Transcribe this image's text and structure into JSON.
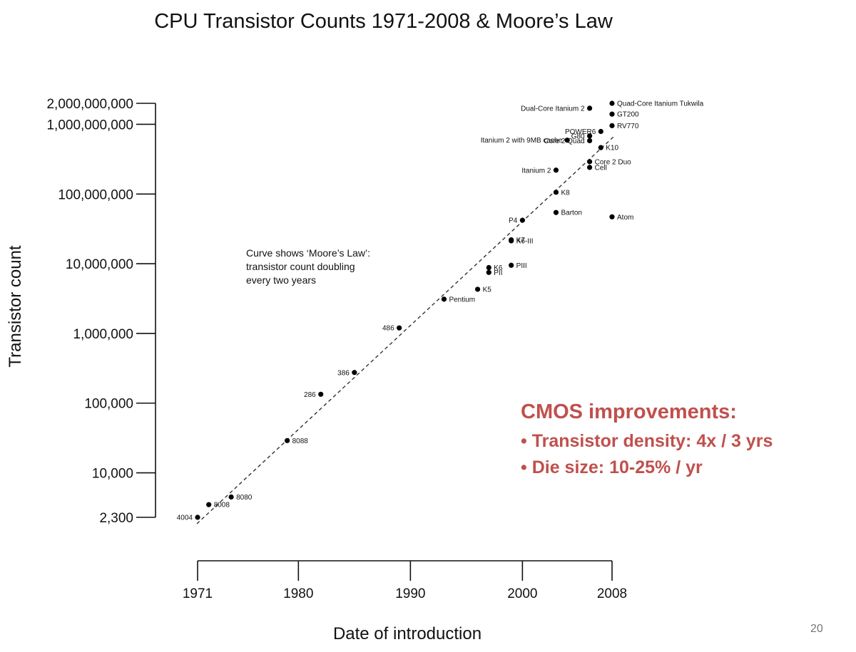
{
  "title": "CPU Transistor Counts 1971-2008 & Moore’s Law",
  "page_number": "20",
  "callout": {
    "heading": "CMOS improvements:",
    "items": [
      "• Transistor density: 4x / 3 yrs",
      "• Die size: 10-25% / yr"
    ]
  },
  "accent_color": "#c0504d",
  "chart_data": {
    "type": "scatter",
    "title": "CPU Transistor Counts 1971-2008 & Moore’s Law",
    "xlabel": "Date of introduction",
    "ylabel": "Transistor count",
    "yscale": "log",
    "xlim": [
      1971,
      2008
    ],
    "ylim": [
      2300,
      2000000000
    ],
    "x_ticks": [
      1971,
      1980,
      1990,
      2000,
      2008
    ],
    "y_ticks": [
      {
        "value": 2000000000,
        "label": "2,000,000,000"
      },
      {
        "value": 1000000000,
        "label": "1,000,000,000"
      },
      {
        "value": 100000000,
        "label": "100,000,000"
      },
      {
        "value": 10000000,
        "label": "10,000,000"
      },
      {
        "value": 1000000,
        "label": "1,000,000"
      },
      {
        "value": 100000,
        "label": "100,000"
      },
      {
        "value": 10000,
        "label": "10,000"
      },
      {
        "value": 2300,
        "label": "2,300"
      }
    ],
    "annotation": [
      "Curve shows ‘Moore’s Law’:",
      "transistor count doubling",
      "every two years"
    ],
    "trend": {
      "type": "dashed",
      "label": "Moore’s Law",
      "doubling_years": 2,
      "from": [
        1971,
        2300
      ],
      "to": [
        2008,
        600000000
      ]
    },
    "points": [
      {
        "name": "4004",
        "x": 1971,
        "y": 2300,
        "label_side": "left"
      },
      {
        "name": "8008",
        "x": 1972,
        "y": 3500,
        "label_side": "right"
      },
      {
        "name": "8080",
        "x": 1974,
        "y": 4500,
        "label_side": "right"
      },
      {
        "name": "8088",
        "x": 1979,
        "y": 29000,
        "label_side": "right"
      },
      {
        "name": "286",
        "x": 1982,
        "y": 134000,
        "label_side": "left"
      },
      {
        "name": "386",
        "x": 1985,
        "y": 275000,
        "label_side": "left"
      },
      {
        "name": "486",
        "x": 1989,
        "y": 1200000,
        "label_side": "left"
      },
      {
        "name": "Pentium",
        "x": 1993,
        "y": 3100000,
        "label_side": "right"
      },
      {
        "name": "K5",
        "x": 1996,
        "y": 4300000,
        "label_side": "right"
      },
      {
        "name": "K6",
        "x": 1997,
        "y": 8800000,
        "label_side": "right"
      },
      {
        "name": "PII",
        "x": 1997,
        "y": 7500000,
        "label_side": "right"
      },
      {
        "name": "PIII",
        "x": 1999,
        "y": 9500000,
        "label_side": "right"
      },
      {
        "name": "K6-III",
        "x": 1999,
        "y": 21300000,
        "label_side": "right"
      },
      {
        "name": "K7",
        "x": 1999,
        "y": 22000000,
        "label_side": "right"
      },
      {
        "name": "P4",
        "x": 2000,
        "y": 42000000,
        "label_side": "left"
      },
      {
        "name": "Barton",
        "x": 2003,
        "y": 54300000,
        "label_side": "right"
      },
      {
        "name": "K8",
        "x": 2003,
        "y": 105900000,
        "label_side": "right"
      },
      {
        "name": "Atom",
        "x": 2008,
        "y": 47000000,
        "label_side": "right"
      },
      {
        "name": "Itanium 2",
        "x": 2003,
        "y": 220000000,
        "label_side": "left"
      },
      {
        "name": "Cell",
        "x": 2006,
        "y": 241000000,
        "label_side": "right"
      },
      {
        "name": "Core 2 Duo",
        "x": 2006,
        "y": 291000000,
        "label_side": "right"
      },
      {
        "name": "K10",
        "x": 2007,
        "y": 463000000,
        "label_side": "right"
      },
      {
        "name": "Core 2 Quad",
        "x": 2006,
        "y": 582000000,
        "label_side": "left"
      },
      {
        "name": "Itanium 2 with 9MB cache",
        "x": 2004,
        "y": 592000000,
        "label_side": "left"
      },
      {
        "name": "G80",
        "x": 2006,
        "y": 681000000,
        "label_side": "left"
      },
      {
        "name": "POWER6",
        "x": 2007,
        "y": 789000000,
        "label_side": "left"
      },
      {
        "name": "RV770",
        "x": 2008,
        "y": 956000000,
        "label_side": "right"
      },
      {
        "name": "GT200",
        "x": 2008,
        "y": 1400000000,
        "label_side": "right"
      },
      {
        "name": "Dual-Core Itanium 2",
        "x": 2006,
        "y": 1700000000,
        "label_side": "left"
      },
      {
        "name": "Quad-Core Itanium Tukwila",
        "x": 2008,
        "y": 2000000000,
        "label_side": "right"
      }
    ]
  }
}
